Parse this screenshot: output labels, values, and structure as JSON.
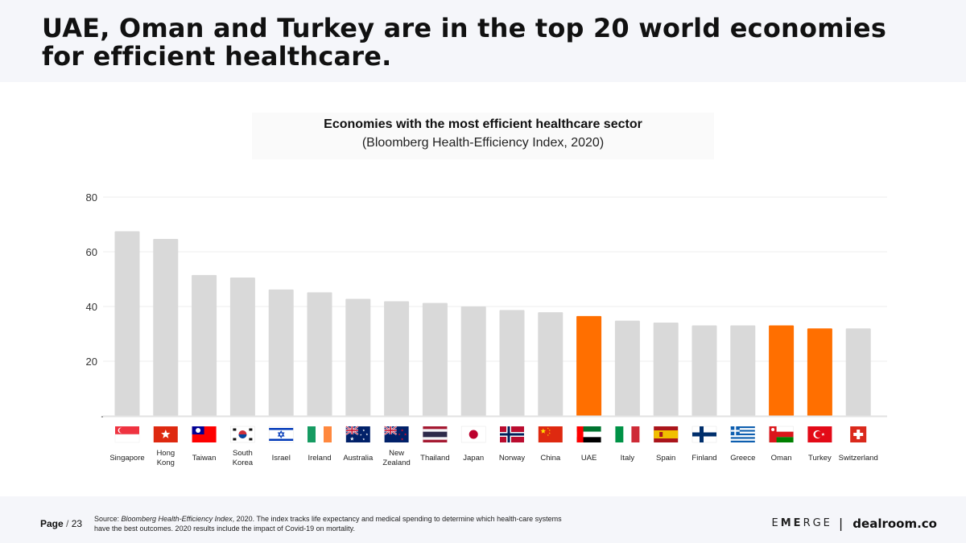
{
  "header": {
    "title": "UAE, Oman and Turkey are in the top 20 world economies for efficient healthcare."
  },
  "chart_data": {
    "type": "bar",
    "title": "Economies with the most efficient healthcare sector",
    "subtitle": "(Bloomberg Health-Efficiency Index, 2020)",
    "xlabel": "",
    "ylabel": "",
    "ylim": [
      0,
      80
    ],
    "yticks": [
      {
        "value": 20,
        "label": "20"
      },
      {
        "value": 40,
        "label": "40"
      },
      {
        "value": 60,
        "label": "60"
      },
      {
        "value": 80,
        "label": "80"
      }
    ],
    "zero_label": "-",
    "grid": true,
    "categories": [
      "Singapore",
      "Hong Kong",
      "Taiwan",
      "South Korea",
      "Israel",
      "Ireland",
      "Australia",
      "New Zealand",
      "Thailand",
      "Japan",
      "Norway",
      "China",
      "UAE",
      "Italy",
      "Spain",
      "Finland",
      "Greece",
      "Oman",
      "Turkey",
      "Switzerland"
    ],
    "category_lines": [
      [
        "Singapore"
      ],
      [
        "Hong",
        "Kong"
      ],
      [
        "Taiwan"
      ],
      [
        "South",
        "Korea"
      ],
      [
        "Israel"
      ],
      [
        "Ireland"
      ],
      [
        "Australia"
      ],
      [
        "New",
        "Zealand"
      ],
      [
        "Thailand"
      ],
      [
        "Japan"
      ],
      [
        "Norway"
      ],
      [
        "China"
      ],
      [
        "UAE"
      ],
      [
        "Italy"
      ],
      [
        "Spain"
      ],
      [
        "Finland"
      ],
      [
        "Greece"
      ],
      [
        "Oman"
      ],
      [
        "Turkey"
      ],
      [
        "Switzerland"
      ]
    ],
    "values": [
      67.5,
      64.7,
      51.5,
      50.6,
      46.2,
      45.2,
      42.8,
      41.9,
      41.3,
      40.0,
      38.7,
      37.9,
      36.5,
      34.8,
      34.1,
      33.1,
      33.1,
      33.1,
      32.0,
      32.0
    ],
    "highlight": [
      "UAE",
      "Oman",
      "Turkey"
    ],
    "bar_color": "#d9d9d9",
    "highlight_color": "#ff6f00",
    "grid_color": "#ececec"
  },
  "footer": {
    "page_label": "Page",
    "page_sep": "/",
    "page_number": "23",
    "source_prefix": "Source: ",
    "source_citation": "Bloomberg Health-Efficiency Index",
    "source_text": ", 2020. The index tracks life expectancy and medical spending to determine which health-care systems have the best outcomes. 2020  results include the impact of Covid-19 on mortality.",
    "brand_emerge_a": "E",
    "brand_emerge_b": "ME",
    "brand_emerge_c": "RGE",
    "brand_sep": "|",
    "brand_dealroom": "dealroom.co"
  }
}
